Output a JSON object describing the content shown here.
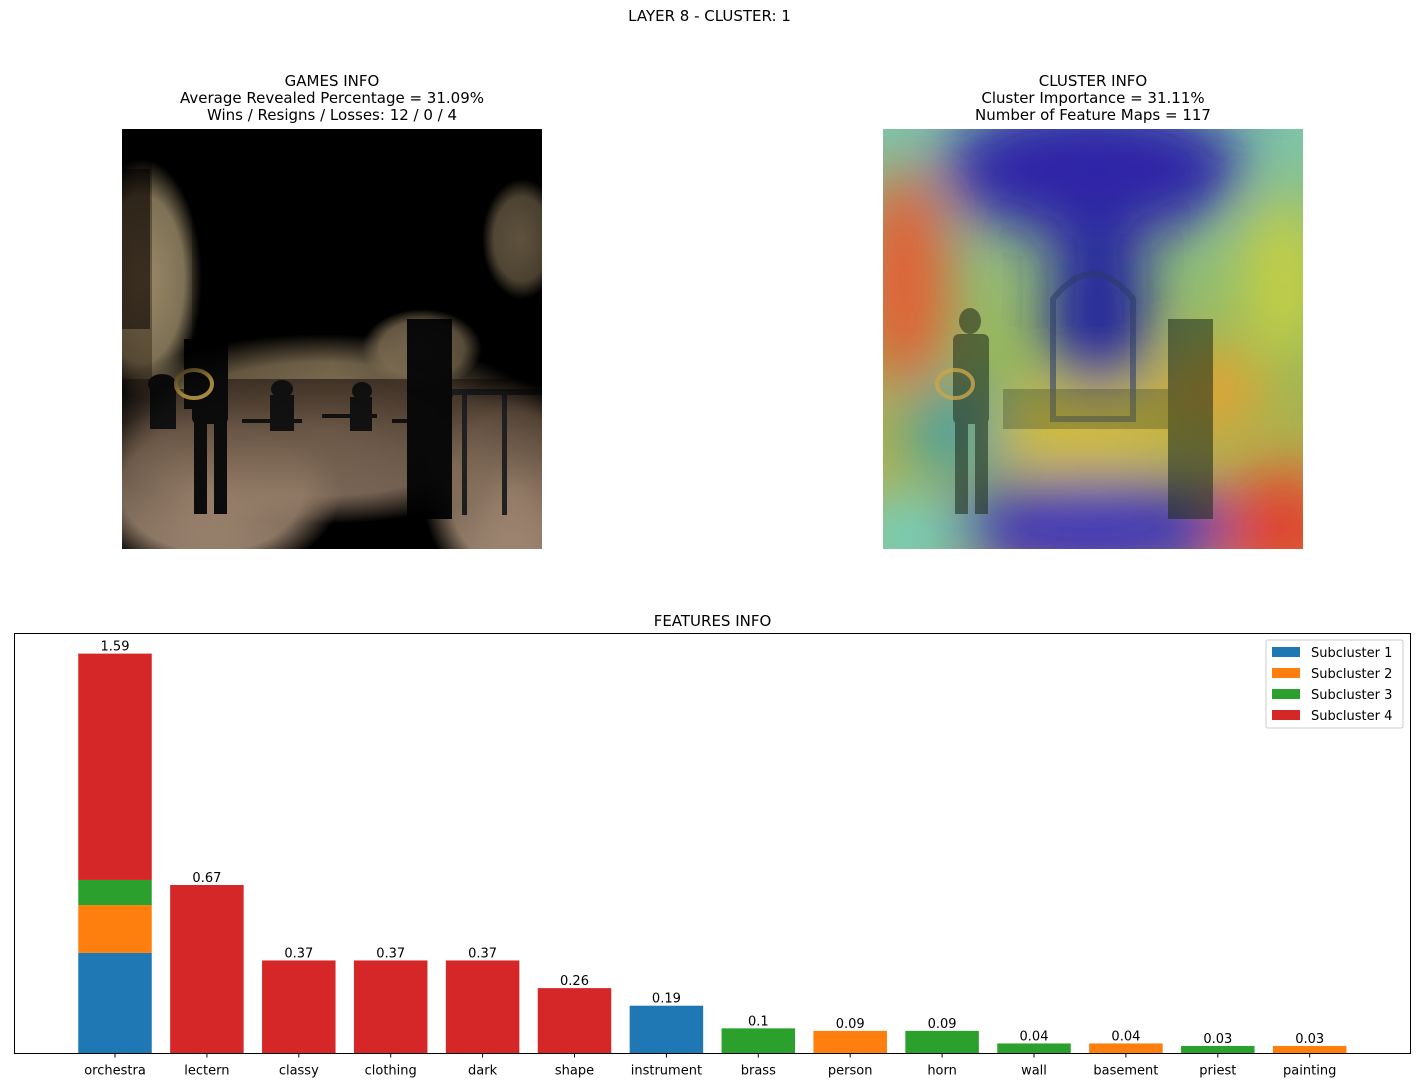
{
  "figure": {
    "suptitle": "LAYER 8 - CLUSTER: 1"
  },
  "games_info": {
    "title": "GAMES INFO",
    "line1": "Average Revealed Percentage = 31.09%",
    "line2": "Wins / Resigns / Losses: 12 / 0 / 4"
  },
  "cluster_info": {
    "title": "CLUSTER INFO",
    "line1": "Cluster Importance = 31.11%",
    "line2": "Number of Feature Maps = 117"
  },
  "colors": {
    "subcluster_1": "#1f77b4",
    "subcluster_2": "#ff7f0e",
    "subcluster_3": "#2ca02c",
    "subcluster_4": "#d62728"
  },
  "chart_data": {
    "type": "bar",
    "title": "FEATURES INFO",
    "stacked": true,
    "grid": false,
    "legend_position": "top-right",
    "ylim": [
      0,
      1.67
    ],
    "categories": [
      "orchestra",
      "lectern",
      "classy",
      "clothing",
      "dark",
      "shape",
      "instrument",
      "brass",
      "person",
      "horn",
      "wall",
      "basement",
      "priest",
      "painting"
    ],
    "series": [
      {
        "name": "Subcluster 1",
        "color": "#1f77b4",
        "values": [
          0.4,
          0,
          0,
          0,
          0,
          0,
          0.19,
          0,
          0,
          0,
          0,
          0,
          0,
          0
        ]
      },
      {
        "name": "Subcluster 2",
        "color": "#ff7f0e",
        "values": [
          0.19,
          0,
          0,
          0,
          0,
          0,
          0,
          0,
          0.09,
          0,
          0,
          0.04,
          0,
          0.03
        ]
      },
      {
        "name": "Subcluster 3",
        "color": "#2ca02c",
        "values": [
          0.1,
          0,
          0,
          0,
          0,
          0,
          0,
          0.1,
          0,
          0.09,
          0.04,
          0,
          0.03,
          0
        ]
      },
      {
        "name": "Subcluster 4",
        "color": "#d62728",
        "values": [
          0.9,
          0.67,
          0.37,
          0.37,
          0.37,
          0.26,
          0,
          0,
          0,
          0,
          0,
          0,
          0,
          0
        ]
      }
    ],
    "totals": [
      1.59,
      0.67,
      0.37,
      0.37,
      0.37,
      0.26,
      0.19,
      0.1,
      0.09,
      0.09,
      0.04,
      0.04,
      0.03,
      0.03
    ],
    "total_labels": [
      "1.59",
      "0.67",
      "0.37",
      "0.37",
      "0.37",
      "0.26",
      "0.19",
      "0.1",
      "0.09",
      "0.09",
      "0.04",
      "0.04",
      "0.03",
      "0.03"
    ]
  }
}
